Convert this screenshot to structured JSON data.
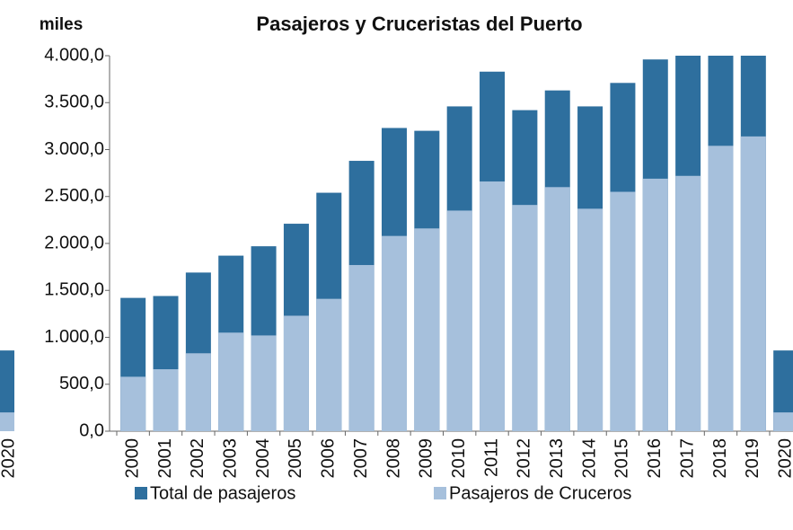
{
  "chart_data": {
    "type": "overlap-bar",
    "title": "Pasajeros y Cruceristas del Puerto",
    "y_unit": "miles",
    "categories": [
      "2000",
      "2001",
      "2002",
      "2003",
      "2004",
      "2005",
      "2006",
      "2007",
      "2008",
      "2009",
      "2010",
      "2011",
      "2012",
      "2013",
      "2014",
      "2015",
      "2016",
      "2017",
      "2018",
      "2019",
      "2020"
    ],
    "series": [
      {
        "name": "Total de pasajeros",
        "color": "#2e6f9e",
        "values": [
          1420,
          1440,
          1690,
          1870,
          1970,
          2210,
          2540,
          2880,
          3230,
          3200,
          3460,
          3830,
          3420,
          3630,
          3460,
          3710,
          3960,
          4000,
          4000,
          4000,
          860
        ]
      },
      {
        "name": "Pasajeros de Cruceros",
        "color": "#a6c0dc",
        "values": [
          580,
          660,
          830,
          1050,
          1020,
          1230,
          1410,
          1770,
          2080,
          2160,
          2350,
          2660,
          2410,
          2600,
          2370,
          2550,
          2690,
          2720,
          3040,
          3140,
          200
        ]
      }
    ],
    "ylim": [
      0,
      4000
    ],
    "yticks": [
      {
        "value": 0,
        "label": "0,0"
      },
      {
        "value": 500,
        "label": "500,0"
      },
      {
        "value": 1000,
        "label": "1.000,0"
      },
      {
        "value": 1500,
        "label": "1.500,0"
      },
      {
        "value": 2000,
        "label": "2.000,0"
      },
      {
        "value": 2500,
        "label": "2.500,0"
      },
      {
        "value": 3000,
        "label": "3.000,0"
      },
      {
        "value": 3500,
        "label": "3.500,0"
      },
      {
        "value": 4000,
        "label": "4.000,0"
      }
    ],
    "legend": "bottom"
  }
}
